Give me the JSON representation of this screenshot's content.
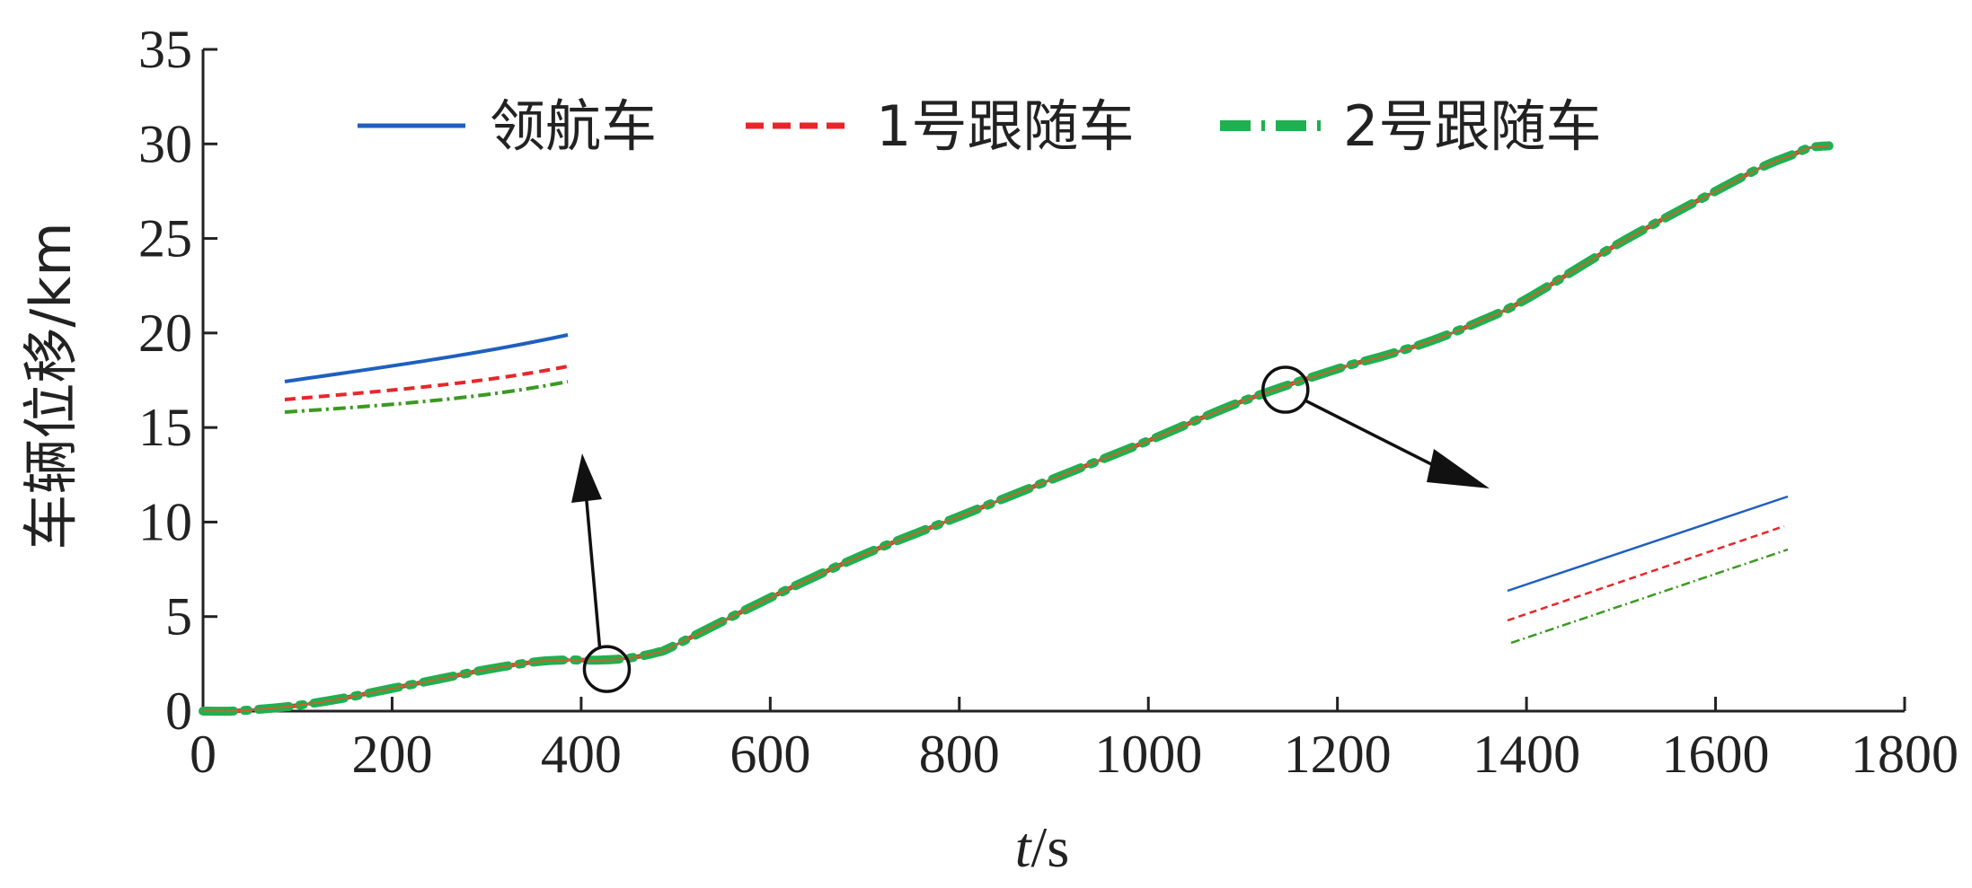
{
  "chart_data": {
    "type": "line",
    "title": "",
    "xlabel_italic": "t",
    "xlabel_rest": "/s",
    "ylabel": "车辆位移/km",
    "xlim": [
      0,
      1800
    ],
    "ylim": [
      0,
      35
    ],
    "xticks": [
      0,
      200,
      400,
      600,
      800,
      1000,
      1200,
      1400,
      1600,
      1800
    ],
    "yticks": [
      0,
      5,
      10,
      15,
      20,
      25,
      30,
      35
    ],
    "grid": false,
    "legend_position": "top",
    "series": [
      {
        "name": "领航车",
        "color": "#1f5fbf",
        "style": "solid"
      },
      {
        "name": "1号跟随车",
        "color": "#e8262a",
        "style": "dashed"
      },
      {
        "name": "2号跟随车",
        "color": "#1fb050",
        "style": "dash-dot"
      }
    ],
    "x": [
      0,
      30,
      60,
      100,
      150,
      200,
      250,
      300,
      350,
      380,
      420,
      450,
      480,
      500,
      600,
      700,
      800,
      900,
      1000,
      1100,
      1200,
      1250,
      1300,
      1350,
      1400,
      1500,
      1600,
      1650,
      1680,
      1700,
      1720
    ],
    "y": [
      0,
      0,
      0.1,
      0.3,
      0.7,
      1.2,
      1.7,
      2.2,
      2.6,
      2.7,
      2.7,
      2.8,
      3.1,
      3.5,
      6.0,
      8.3,
      10.3,
      12.3,
      14.3,
      16.4,
      18.1,
      18.8,
      19.6,
      20.6,
      21.8,
      24.8,
      27.5,
      28.8,
      29.4,
      29.8,
      29.9
    ],
    "annotations": {
      "zoom_circles": [
        {
          "x": 430,
          "y": 2.7
        },
        {
          "x": 1145,
          "y": 17.0
        }
      ]
    }
  }
}
